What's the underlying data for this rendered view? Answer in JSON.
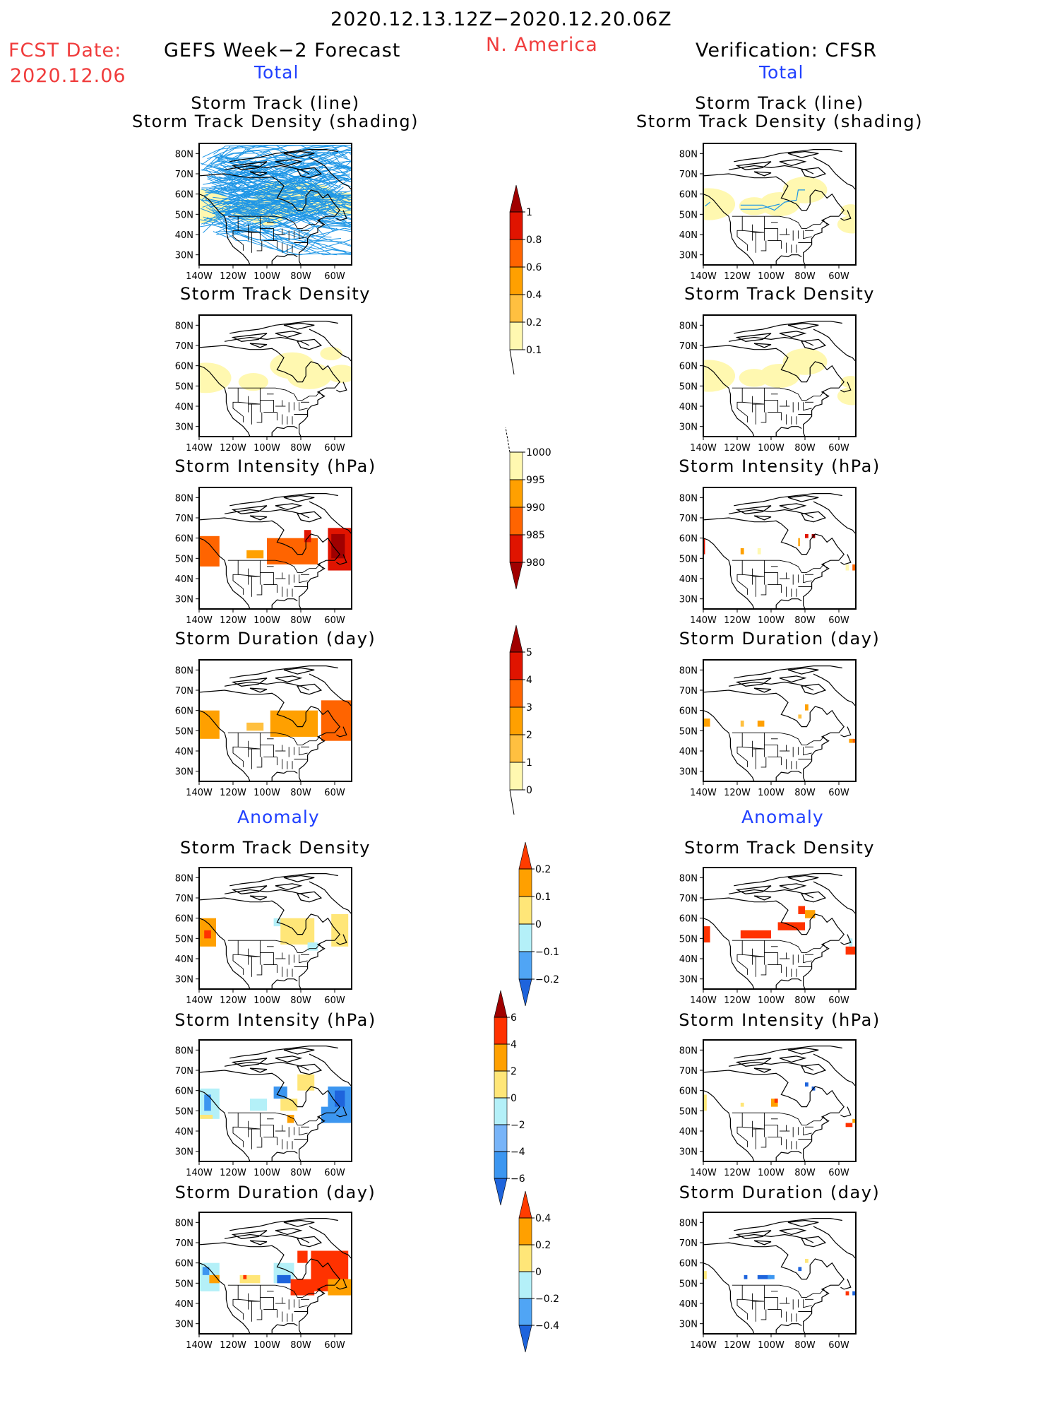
{
  "header": {
    "period": "2020.12.13.12Z−2020.12.20.06Z",
    "region": "N. America",
    "fcst_label": "FCST Date:",
    "fcst_date": "2020.12.06",
    "left_title": "GEFS Week−2 Forecast",
    "right_title": "Verification: CFSR"
  },
  "sections": {
    "total": "Total",
    "anomaly": "Anomaly"
  },
  "panel_titles": {
    "track_line": "Storm Track (line)",
    "track_shading": "Storm Track Density (shading)",
    "density": "Storm Track Density",
    "intensity": "Storm Intensity (hPa)",
    "duration": "Storm Duration (day)"
  },
  "axes": {
    "lat_ticks": [
      "80N",
      "70N",
      "60N",
      "50N",
      "40N",
      "30N"
    ],
    "lon_ticks": [
      "140W",
      "120W",
      "100W",
      "80W",
      "60W"
    ]
  },
  "colorbars": [
    {
      "id": "density-total",
      "labels": [
        "1",
        "0.8",
        "0.6",
        "0.4",
        "0.2",
        "0.1"
      ],
      "colors": [
        "#a00000",
        "#e01400",
        "#ff6400",
        "#ffa000",
        "#ffc040",
        "#fff8b0"
      ],
      "ends": "top"
    },
    {
      "id": "intensity-total",
      "labels": [
        "1000",
        "995",
        "990",
        "985",
        "980"
      ],
      "colors": [
        "#fff8b0",
        "#ffa000",
        "#ff6400",
        "#e01400",
        "#a00000"
      ],
      "ends": "bottom"
    },
    {
      "id": "duration-total",
      "labels": [
        "5",
        "4",
        "3",
        "2",
        "1",
        "0"
      ],
      "colors": [
        "#a00000",
        "#e01400",
        "#ff6400",
        "#ffa000",
        "#ffc040",
        "#fff8b0"
      ],
      "ends": "top"
    },
    {
      "id": "density-anom",
      "labels": [
        "0.2",
        "0.1",
        "0",
        "−0.1",
        "−0.2"
      ],
      "colors": [
        "#ff3c00",
        "#ffa000",
        "#ffe678",
        "#b4f0f8",
        "#50a5f5",
        "#1e64dc"
      ],
      "ends": "both"
    },
    {
      "id": "intensity-anom",
      "labels": [
        "6",
        "4",
        "2",
        "0",
        "−2",
        "−4",
        "−6"
      ],
      "colors": [
        "#a00000",
        "#ff3200",
        "#ffa000",
        "#ffe678",
        "#b4f0f8",
        "#78b4f8",
        "#3c96f0",
        "#1e64dc"
      ],
      "ends": "both"
    },
    {
      "id": "duration-anom",
      "labels": [
        "0.4",
        "0.2",
        "0",
        "−0.2",
        "−0.4"
      ],
      "colors": [
        "#ff3c00",
        "#ffa000",
        "#ffe678",
        "#b4f0f8",
        "#50a5f5",
        "#1e64dc"
      ],
      "ends": "both"
    }
  ],
  "track_color": "#1e96e6"
}
